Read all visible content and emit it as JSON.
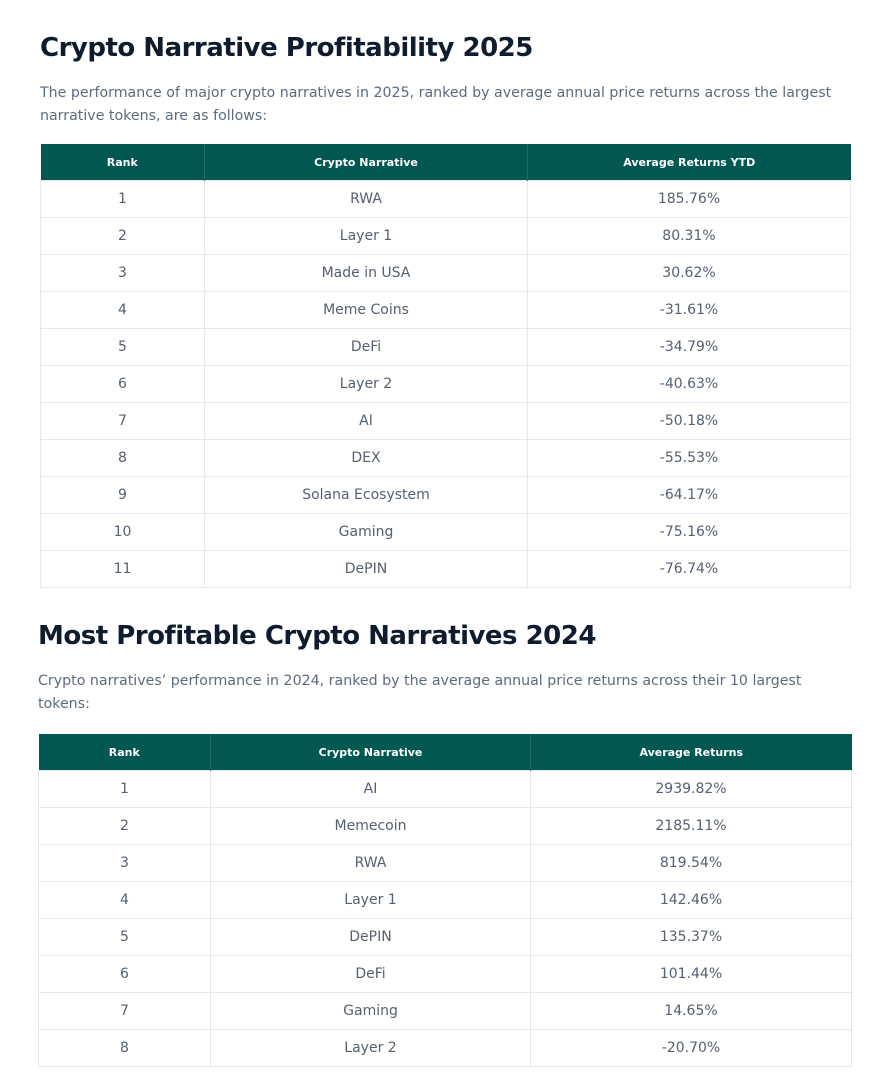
{
  "section_2025": {
    "title": "Crypto Narrative Profitability 2025",
    "intro": "The performance of major crypto narratives in 2025, ranked by average annual price returns across the largest narrative tokens, are as follows:",
    "headers": [
      "Rank",
      "Crypto Narrative",
      "Average Returns YTD"
    ],
    "rows": [
      [
        "1",
        "RWA",
        "185.76%"
      ],
      [
        "2",
        "Layer 1",
        "80.31%"
      ],
      [
        "3",
        "Made in USA",
        "30.62%"
      ],
      [
        "4",
        "Meme Coins",
        "-31.61%"
      ],
      [
        "5",
        "DeFi",
        "-34.79%"
      ],
      [
        "6",
        "Layer 2",
        "-40.63%"
      ],
      [
        "7",
        "AI",
        "-50.18%"
      ],
      [
        "8",
        "DEX",
        "-55.53%"
      ],
      [
        "9",
        "Solana Ecosystem",
        "-64.17%"
      ],
      [
        "10",
        "Gaming",
        "-75.16%"
      ],
      [
        "11",
        "DePIN",
        "-76.74%"
      ]
    ]
  },
  "section_2024": {
    "title": "Most Profitable Crypto Narratives 2024",
    "intro": "Crypto narratives’ performance in 2024, ranked by the average annual price returns across their 10 largest tokens:",
    "headers": [
      "Rank",
      "Crypto Narrative",
      "Average Returns"
    ],
    "rows": [
      [
        "1",
        "AI",
        "2939.82%"
      ],
      [
        "2",
        "Memecoin",
        "2185.11%"
      ],
      [
        "3",
        "RWA",
        "819.54%"
      ],
      [
        "4",
        "Layer 1",
        "142.46%"
      ],
      [
        "5",
        "DePIN",
        "135.37%"
      ],
      [
        "6",
        "DeFi",
        "101.44%"
      ],
      [
        "7",
        "Gaming",
        "14.65%"
      ],
      [
        "8",
        "Layer 2",
        "-20.70%"
      ]
    ]
  },
  "colors": {
    "header_bg": "#005850",
    "title_text": "#0f1c2e",
    "body_text": "#5b6b7f",
    "cell_border": "#e5e7eb"
  }
}
